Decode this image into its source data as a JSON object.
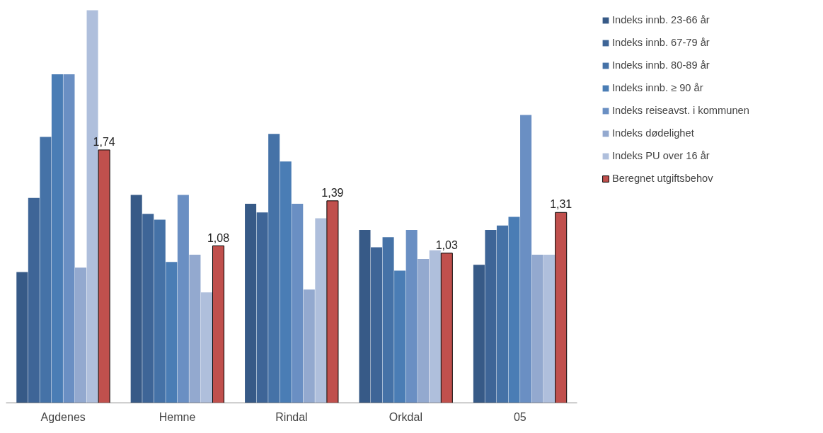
{
  "chart_data": {
    "type": "bar",
    "categories": [
      "Agdenes",
      "Hemne",
      "Rindal",
      "Orkdal",
      "05"
    ],
    "ylim": [
      0,
      2.72
    ],
    "tick_labels": "x",
    "grid": false,
    "legend": "right",
    "series": [
      {
        "name": "Indeks innb. 23-66 år",
        "color": "#375a87",
        "values": [
          0.9,
          1.43,
          1.37,
          1.19,
          0.95
        ]
      },
      {
        "name": "Indeks innb. 67-79 år",
        "color": "#3e6597",
        "values": [
          1.41,
          1.3,
          1.31,
          1.07,
          1.19
        ]
      },
      {
        "name": "Indeks innb. 80-89 år",
        "color": "#4572a7",
        "values": [
          1.83,
          1.26,
          1.85,
          1.14,
          1.22
        ]
      },
      {
        "name": "Indeks innb. ≥ 90 år",
        "color": "#4a7db5",
        "values": [
          2.26,
          0.97,
          1.66,
          0.91,
          1.28
        ]
      },
      {
        "name": "Indeks reiseavst. i kommunen",
        "color": "#6a8fc3",
        "values": [
          2.26,
          1.43,
          1.37,
          1.19,
          1.98
        ]
      },
      {
        "name": "Indeks dødelighet",
        "color": "#93a9cf",
        "values": [
          0.93,
          1.02,
          0.78,
          0.99,
          1.02
        ]
      },
      {
        "name": "Indeks PU over 16 år",
        "color": "#afbfdc",
        "values": [
          2.7,
          0.76,
          1.27,
          1.05,
          1.02
        ]
      },
      {
        "name": "Beregnet utgiftsbehov",
        "color": "#c0504d",
        "values": [
          1.74,
          1.08,
          1.39,
          1.03,
          1.31
        ],
        "value_labels": [
          "1,74",
          "1,08",
          "1,39",
          "1,03",
          "1,31"
        ]
      }
    ]
  }
}
